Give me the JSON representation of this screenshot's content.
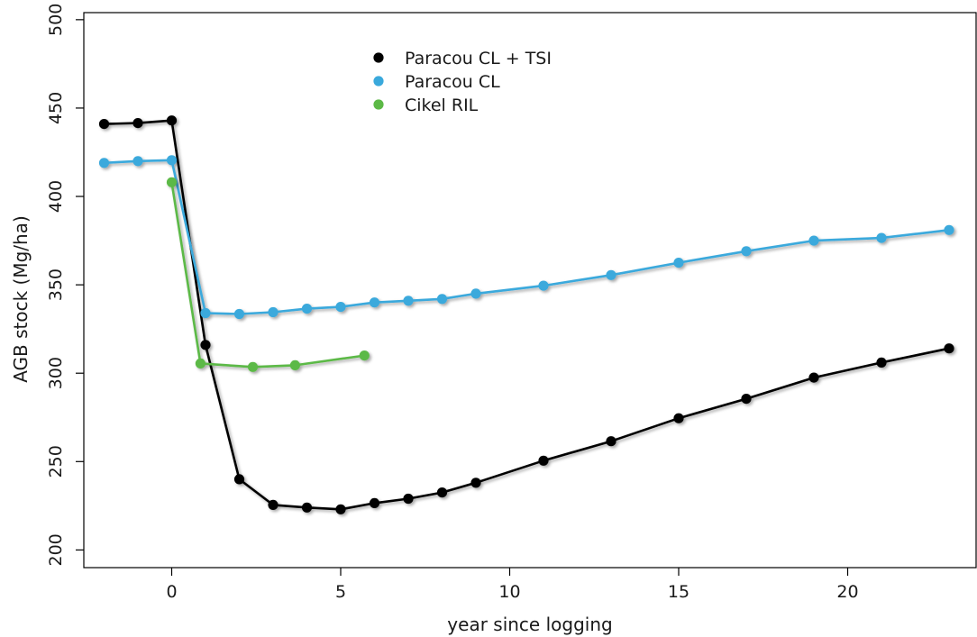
{
  "chart_data": {
    "type": "line",
    "xlabel": "year since logging",
    "ylabel": "AGB stock (Mg/ha)",
    "xlim": [
      -2.6,
      23.8
    ],
    "ylim": [
      190,
      504
    ],
    "xticks": [
      0,
      5,
      10,
      15,
      20
    ],
    "yticks": [
      200,
      250,
      300,
      350,
      400,
      450,
      500
    ],
    "grid": false,
    "legend_position": "top-center",
    "series": [
      {
        "name": "Paracou CL + TSI",
        "color": "#000000",
        "x": [
          -2,
          -1,
          0,
          1,
          2,
          3,
          4,
          5,
          6,
          7,
          8,
          9,
          11,
          13,
          15,
          17,
          19,
          21,
          23
        ],
        "values": [
          441,
          441.5,
          443,
          316,
          240,
          225.5,
          224,
          223,
          226.5,
          229,
          232.5,
          238,
          250.5,
          261.5,
          274.5,
          285.5,
          297.5,
          306,
          314
        ]
      },
      {
        "name": "Paracou CL",
        "color": "#3aa9dc",
        "x": [
          -2,
          -1,
          0,
          1,
          2,
          3,
          4,
          5,
          6,
          7,
          8,
          9,
          11,
          13,
          15,
          17,
          19,
          21,
          23
        ],
        "values": [
          419,
          420,
          420.5,
          334,
          333.5,
          334.5,
          336.5,
          337.5,
          340,
          341,
          342,
          345,
          349.5,
          355.5,
          362.5,
          369,
          375,
          376.5,
          381
        ]
      },
      {
        "name": "Cikel RIL",
        "color": "#5cb946",
        "x": [
          0,
          0.85,
          2.4,
          3.65,
          5.7
        ],
        "values": [
          408,
          305.5,
          303.5,
          304.5,
          310
        ]
      }
    ]
  }
}
